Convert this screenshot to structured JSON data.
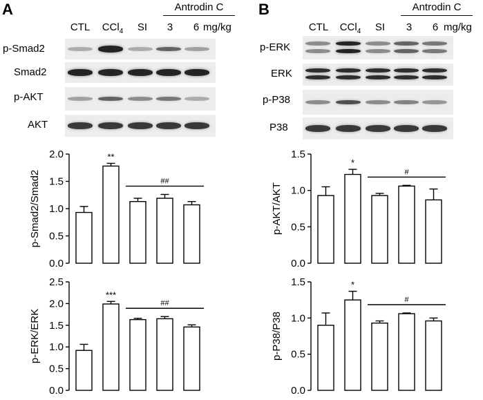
{
  "panels": [
    {
      "letter": "A",
      "lanes": [
        "CTL",
        "CCl4",
        "SI",
        "3",
        "6"
      ],
      "lane_ccl4": {
        "main": "CCl",
        "sub": "4"
      },
      "dose_group": "Antrodin C",
      "dose_unit": "mg/kg",
      "blots": [
        {
          "label": "p-Smad2",
          "intensity": [
            0.3,
            0.95,
            0.3,
            0.65,
            0.35
          ],
          "double": false
        },
        {
          "label": "Smad2",
          "intensity": [
            0.95,
            0.95,
            0.95,
            0.95,
            0.95
          ],
          "double": false
        },
        {
          "label": "p-AKT",
          "intensity": [
            0.35,
            0.65,
            0.45,
            0.55,
            0.3
          ],
          "double": false
        },
        {
          "label": "AKT",
          "intensity": [
            0.85,
            0.85,
            0.85,
            0.85,
            0.85
          ],
          "double": false
        }
      ]
    },
    {
      "letter": "B",
      "lanes": [
        "CTL",
        "CCl4",
        "SI",
        "3",
        "6"
      ],
      "lane_ccl4": {
        "main": "CCl",
        "sub": "4"
      },
      "dose_group": "Antrodin C",
      "dose_unit": "mg/kg",
      "blots": [
        {
          "label": "p-ERK",
          "intensity": [
            0.45,
            0.95,
            0.45,
            0.65,
            0.55
          ],
          "double": true
        },
        {
          "label": "ERK",
          "intensity": [
            0.9,
            0.9,
            0.9,
            0.9,
            0.9
          ],
          "double": true
        },
        {
          "label": "p-P38",
          "intensity": [
            0.45,
            0.75,
            0.45,
            0.5,
            0.4
          ],
          "double": false
        },
        {
          "label": "P38",
          "intensity": [
            0.85,
            0.85,
            0.85,
            0.85,
            0.85
          ],
          "double": false
        }
      ]
    }
  ],
  "chart_data": [
    {
      "type": "bar",
      "panel": "A",
      "ylabel": "p-Smad2/Smad2",
      "ylim": [
        0,
        2.0
      ],
      "yticks": [
        "0.0",
        "0.5",
        "1.0",
        "1.5",
        "2.0"
      ],
      "values": [
        0.93,
        1.78,
        1.13,
        1.19,
        1.07
      ],
      "errors": [
        0.11,
        0.05,
        0.06,
        0.07,
        0.06
      ],
      "annotations": [
        {
          "bar": 1,
          "text": "**"
        }
      ],
      "bracket": {
        "from": 2,
        "to": 4,
        "text": "##"
      }
    },
    {
      "type": "bar",
      "panel": "A",
      "ylabel": "p-ERK/ERK",
      "ylim": [
        0,
        2.5
      ],
      "yticks": [
        "0.0",
        "0.5",
        "1.0",
        "1.5",
        "2.0",
        "2.5"
      ],
      "values": [
        0.92,
        1.99,
        1.63,
        1.65,
        1.46
      ],
      "errors": [
        0.14,
        0.06,
        0.03,
        0.05,
        0.05
      ],
      "annotations": [
        {
          "bar": 1,
          "text": "***"
        }
      ],
      "bracket": {
        "from": 2,
        "to": 4,
        "text": "##"
      }
    },
    {
      "type": "bar",
      "panel": "B",
      "ylabel": "p-AKT/AKT",
      "ylim": [
        0,
        1.5
      ],
      "yticks": [
        "0.0",
        "0.5",
        "1.0",
        "1.5"
      ],
      "values": [
        0.93,
        1.22,
        0.93,
        1.06,
        0.87
      ],
      "errors": [
        0.12,
        0.07,
        0.03,
        0.01,
        0.15
      ],
      "annotations": [
        {
          "bar": 1,
          "text": "*"
        }
      ],
      "bracket": {
        "from": 2,
        "to": 4,
        "text": "#"
      }
    },
    {
      "type": "bar",
      "panel": "B",
      "ylabel": "p-P38/P38",
      "ylim": [
        0,
        1.5
      ],
      "yticks": [
        "0.0",
        "0.5",
        "1.0",
        "1.5"
      ],
      "values": [
        0.9,
        1.25,
        0.93,
        1.06,
        0.96
      ],
      "errors": [
        0.17,
        0.12,
        0.03,
        0.01,
        0.04
      ],
      "annotations": [
        {
          "bar": 1,
          "text": "*"
        }
      ],
      "bracket": {
        "from": 2,
        "to": 4,
        "text": "#"
      }
    }
  ]
}
